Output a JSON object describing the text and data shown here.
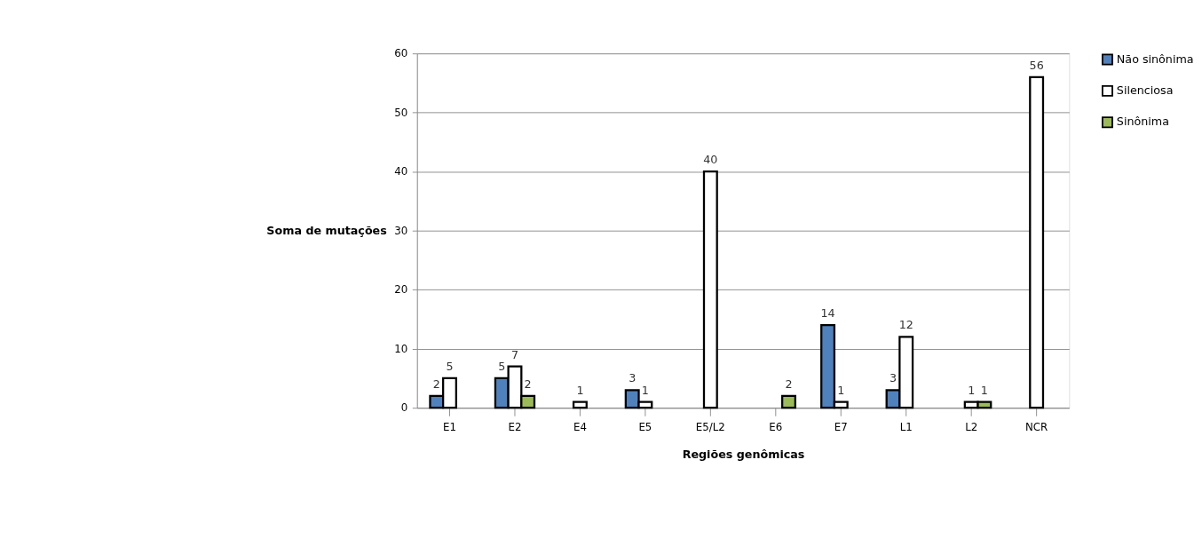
{
  "chart_data": {
    "type": "bar",
    "xlabel": "Regiões genômicas",
    "ylabel": "Soma de mutações",
    "categories": [
      "E1",
      "E2",
      "E4",
      "E5",
      "E5/L2",
      "E6",
      "E7",
      "L1",
      "L2",
      "NCR"
    ],
    "series": [
      {
        "name": "Não sinônima",
        "color": "#4f81bd",
        "values": [
          2,
          5,
          null,
          3,
          null,
          null,
          14,
          3,
          null,
          null
        ]
      },
      {
        "name": "Silenciosa",
        "color": "#ffffff",
        "values": [
          5,
          7,
          1,
          1,
          40,
          null,
          1,
          12,
          1,
          56
        ]
      },
      {
        "name": "Sinônima",
        "color": "#9bbb59",
        "values": [
          null,
          2,
          null,
          null,
          null,
          2,
          null,
          null,
          1,
          null
        ]
      }
    ],
    "ylim": [
      0,
      60
    ],
    "yticks": [
      0,
      10,
      20,
      30,
      40,
      50,
      60
    ],
    "grid": "y",
    "legend": "right",
    "data_labels": true
  }
}
